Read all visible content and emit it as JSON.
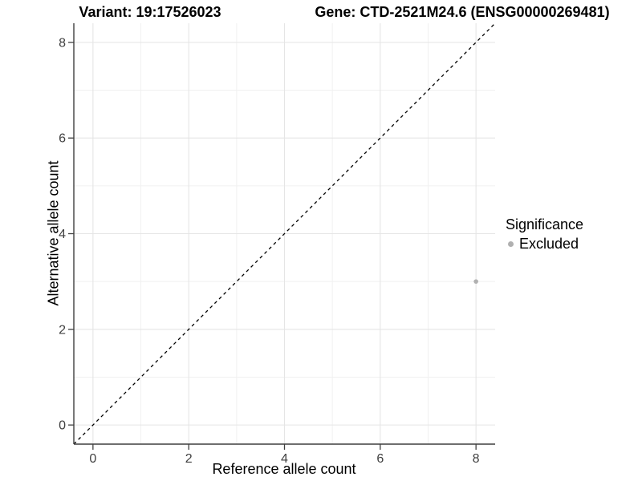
{
  "title": {
    "variant": "Variant: 19:17526023",
    "gene": "Gene: CTD-2521M24.6 (ENSG00000269481)"
  },
  "axes": {
    "x": {
      "label": "Reference allele count"
    },
    "y": {
      "label": "Alternative allele count"
    }
  },
  "legend": {
    "title": "Significance",
    "items": [
      {
        "label": "Excluded",
        "color": "#b0b0b0"
      }
    ]
  },
  "style": {
    "background": "#ffffff",
    "axis_line": "#3f3f3f",
    "tick_mark": "#3f3f3f",
    "tick_label_color": "#404040",
    "grid_major": "#e5e5e5",
    "grid_minor": "#f1f1f1",
    "point_color": "#b0b0b0",
    "reference_line_color": "#000000",
    "title_color": "#000000"
  },
  "chart_data": {
    "type": "scatter",
    "title": "Variant: 19:17526023    Gene: CTD-2521M24.6 (ENSG00000269481)",
    "xlabel": "Reference allele count",
    "ylabel": "Alternative allele count",
    "xlim": [
      -0.4,
      8.4
    ],
    "ylim": [
      -0.4,
      8.4
    ],
    "x_major_ticks": [
      0,
      2,
      4,
      6,
      8
    ],
    "y_major_ticks": [
      0,
      2,
      4,
      6,
      8
    ],
    "x_minor_ticks": [
      1,
      3,
      5,
      7
    ],
    "y_minor_ticks": [
      1,
      3,
      5,
      7
    ],
    "grid": true,
    "legend_position": "right",
    "series": [
      {
        "name": "Excluded",
        "color": "#b0b0b0",
        "points": [
          {
            "x": 8,
            "y": 3
          }
        ]
      }
    ],
    "reference_line": {
      "type": "abline",
      "slope": 1,
      "intercept": 0,
      "style": "dashed",
      "color": "#000000"
    }
  }
}
